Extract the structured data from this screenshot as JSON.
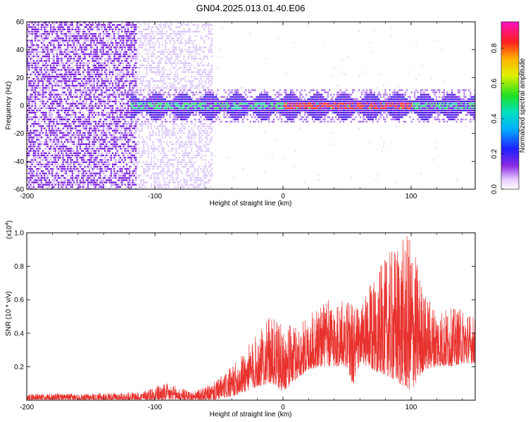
{
  "title": "GN04.2025.013.01.40.E06",
  "colors": {
    "snr_line": "#e8322e",
    "spectrogram_low": "#7a1fe0",
    "spectrogram_band": "#28d0b0",
    "spectrogram_peak": "#ff2a2a"
  },
  "chart_data": [
    {
      "type": "heatmap",
      "xlabel": "Height of straight line (km)",
      "ylabel": "Frequency (Hz)",
      "xlim": [
        -200,
        150
      ],
      "ylim": [
        -60,
        60
      ],
      "x_ticks": [
        -200,
        -100,
        0,
        100
      ],
      "x_tick_labels": [
        "-200",
        "-100",
        "0",
        "100"
      ],
      "y_ticks": [
        -60,
        -40,
        -20,
        0,
        20,
        40,
        60
      ],
      "y_tick_labels": [
        "-60",
        "-40",
        "-20",
        "0",
        "20",
        "40",
        "60"
      ],
      "colorbar": {
        "label": "Normalized spectral amplitude",
        "range": [
          0,
          0.95
        ],
        "ticks": [
          0.0,
          0.2,
          0.4,
          0.6,
          0.8
        ],
        "tick_labels": [
          "0.0",
          "0.2",
          "0.4",
          "0.6",
          "0.8"
        ],
        "colormap": "rainbow (violet-blue-cyan-green-yellow-orange-red-magenta)"
      },
      "features": {
        "noise_region_x": [
          -200,
          -55
        ],
        "dense_noise_x": [
          -200,
          -115
        ],
        "band_center_hz": 0,
        "band_half_width_hz": 5,
        "band_start_x": -120,
        "peak_amplitude_x": [
          0,
          100
        ]
      }
    },
    {
      "type": "line",
      "xlabel": "Height of straight line (km)",
      "ylabel": "SNR (10 * v/v)",
      "y_multiplier": "(x10^4)",
      "xlim": [
        -200,
        150
      ],
      "ylim": [
        0,
        1.0
      ],
      "x_ticks": [
        -200,
        -100,
        0,
        100
      ],
      "x_tick_labels": [
        "-200",
        "-100",
        "0",
        "100"
      ],
      "y_ticks": [
        0.2,
        0.4,
        0.6,
        0.8,
        1.0
      ],
      "y_tick_labels": [
        "0.2",
        "0.4",
        "0.6",
        "0.8",
        "1.0"
      ],
      "series": [
        {
          "color": "#e8322e",
          "envelope": {
            "x": [
              -200,
              -150,
              -110,
              -100,
              -90,
              -70,
              -55,
              -40,
              -30,
              -20,
              -10,
              0,
              10,
              20,
              30,
              40,
              50,
              55,
              60,
              70,
              80,
              90,
              100,
              110,
              120,
              130,
              140,
              150
            ],
            "low": [
              0.0,
              0.0,
              0.0,
              0.0,
              0.0,
              0.0,
              0.0,
              0.02,
              0.05,
              0.08,
              0.1,
              0.05,
              0.12,
              0.18,
              0.2,
              0.2,
              0.2,
              0.08,
              0.22,
              0.18,
              0.15,
              0.1,
              0.05,
              0.18,
              0.2,
              0.2,
              0.22,
              0.22
            ],
            "high": [
              0.04,
              0.04,
              0.05,
              0.09,
              0.1,
              0.05,
              0.1,
              0.2,
              0.3,
              0.4,
              0.5,
              0.45,
              0.45,
              0.5,
              0.6,
              0.6,
              0.6,
              0.6,
              0.55,
              0.72,
              0.85,
              0.95,
              1.0,
              0.65,
              0.55,
              0.55,
              0.55,
              0.5
            ]
          }
        }
      ]
    }
  ]
}
